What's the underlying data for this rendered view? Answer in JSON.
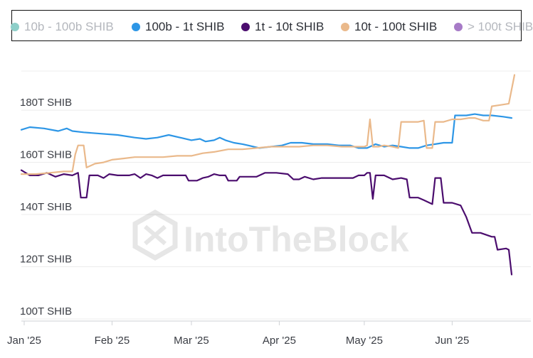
{
  "legend": [
    {
      "label": "10b - 100b SHIB",
      "color": "#8ecfc9",
      "active": false
    },
    {
      "label": "100b - 1t SHIB",
      "color": "#2d96e6",
      "active": true
    },
    {
      "label": "1t - 10t SHIB",
      "color": "#4b0d6e",
      "active": true
    },
    {
      "label": "10t - 100t SHIB",
      "color": "#eab98b",
      "active": true
    },
    {
      "label": "> 100t SHIB",
      "color": "#a77bc7",
      "active": false
    }
  ],
  "watermark": "IntoTheBlock",
  "chart_data": {
    "type": "line",
    "ylim": [
      100,
      195
    ],
    "y_ticks": [
      {
        "value": 100,
        "label": "100T SHIB"
      },
      {
        "value": 120,
        "label": "120T SHIB"
      },
      {
        "value": 140,
        "label": "140T SHIB"
      },
      {
        "value": 160,
        "label": "160T SHIB"
      },
      {
        "value": 180,
        "label": "180T SHIB"
      }
    ],
    "x_ticks": [
      {
        "x": 1,
        "label": "Jan '25"
      },
      {
        "x": 32,
        "label": "Feb '25"
      },
      {
        "x": 60,
        "label": "Mar '25"
      },
      {
        "x": 91,
        "label": "Apr '25"
      },
      {
        "x": 121,
        "label": "May '25"
      },
      {
        "x": 152,
        "label": "Jun '25"
      }
    ],
    "xlim": [
      0,
      174
    ],
    "series": [
      {
        "name": "100b - 1t SHIB",
        "color": "#2d96e6",
        "points": [
          [
            0,
            172.5
          ],
          [
            3,
            173.5
          ],
          [
            8,
            173
          ],
          [
            13,
            172
          ],
          [
            16,
            173
          ],
          [
            18,
            172
          ],
          [
            22,
            171.5
          ],
          [
            28,
            171
          ],
          [
            34,
            170.5
          ],
          [
            40,
            169.5
          ],
          [
            44,
            169
          ],
          [
            48,
            169.5
          ],
          [
            52,
            170.5
          ],
          [
            56,
            169.5
          ],
          [
            60,
            168.5
          ],
          [
            63,
            169
          ],
          [
            65,
            168
          ],
          [
            68,
            168.5
          ],
          [
            70,
            169.5
          ],
          [
            72,
            168.5
          ],
          [
            75,
            167.5
          ],
          [
            78,
            167
          ],
          [
            80,
            166.5
          ],
          [
            84,
            165.5
          ],
          [
            88,
            166
          ],
          [
            92,
            166.5
          ],
          [
            95,
            167.5
          ],
          [
            99,
            167.5
          ],
          [
            103,
            167
          ],
          [
            108,
            167
          ],
          [
            112,
            166.5
          ],
          [
            116,
            166.5
          ],
          [
            119,
            165.5
          ],
          [
            122,
            165.5
          ],
          [
            125,
            167
          ],
          [
            128,
            166
          ],
          [
            131,
            166.5
          ],
          [
            134,
            166
          ],
          [
            137,
            165.5
          ],
          [
            140,
            165.5
          ],
          [
            143,
            166.5
          ],
          [
            146,
            167
          ],
          [
            149,
            167.5
          ],
          [
            152,
            167.5
          ],
          [
            153,
            178
          ],
          [
            157,
            178
          ],
          [
            160,
            178.5
          ],
          [
            163,
            178
          ],
          [
            166,
            178
          ],
          [
            170,
            177.5
          ],
          [
            173,
            177
          ]
        ]
      },
      {
        "name": "1t - 10t SHIB",
        "color": "#4b0d6e",
        "points": [
          [
            0,
            157
          ],
          [
            3,
            155
          ],
          [
            6,
            155
          ],
          [
            9,
            156
          ],
          [
            12,
            154.5
          ],
          [
            15,
            155.5
          ],
          [
            18,
            155
          ],
          [
            20,
            156
          ],
          [
            21,
            146.5
          ],
          [
            23,
            146.5
          ],
          [
            24,
            155
          ],
          [
            27,
            155
          ],
          [
            29,
            154
          ],
          [
            31,
            155.5
          ],
          [
            34,
            155
          ],
          [
            38,
            155
          ],
          [
            40,
            155.5
          ],
          [
            42,
            154
          ],
          [
            44,
            155.5
          ],
          [
            46,
            155
          ],
          [
            48,
            154
          ],
          [
            50,
            155
          ],
          [
            53,
            155
          ],
          [
            56,
            155
          ],
          [
            58,
            155
          ],
          [
            59,
            153
          ],
          [
            62,
            153
          ],
          [
            64,
            154
          ],
          [
            66,
            154.5
          ],
          [
            68,
            155.5
          ],
          [
            70,
            155
          ],
          [
            72,
            155
          ],
          [
            73,
            153
          ],
          [
            76,
            153
          ],
          [
            77,
            154.5
          ],
          [
            80,
            154.5
          ],
          [
            83,
            154.5
          ],
          [
            86,
            156
          ],
          [
            90,
            156
          ],
          [
            94,
            155.5
          ],
          [
            96,
            153.5
          ],
          [
            98,
            153.5
          ],
          [
            100,
            154.5
          ],
          [
            103,
            153.5
          ],
          [
            106,
            154
          ],
          [
            110,
            154
          ],
          [
            114,
            154
          ],
          [
            117,
            154
          ],
          [
            119,
            155
          ],
          [
            121,
            155
          ],
          [
            122,
            156
          ],
          [
            123,
            156
          ],
          [
            124,
            146
          ],
          [
            125,
            155
          ],
          [
            128,
            155
          ],
          [
            131,
            153.5
          ],
          [
            134,
            154
          ],
          [
            136,
            153.5
          ],
          [
            137,
            146.5
          ],
          [
            140,
            146.5
          ],
          [
            142,
            145.5
          ],
          [
            145,
            144
          ],
          [
            146,
            154
          ],
          [
            148,
            154
          ],
          [
            149,
            144.5
          ],
          [
            152,
            144.5
          ],
          [
            155,
            143.5
          ],
          [
            157,
            139
          ],
          [
            159,
            133
          ],
          [
            162,
            133
          ],
          [
            166,
            131.5
          ],
          [
            167,
            131.5
          ],
          [
            168,
            126.5
          ],
          [
            171,
            127
          ],
          [
            172,
            126.5
          ],
          [
            173,
            117
          ]
        ]
      },
      {
        "name": "10t - 100t SHIB",
        "color": "#eab98b",
        "points": [
          [
            0,
            155.5
          ],
          [
            5,
            155.5
          ],
          [
            10,
            156
          ],
          [
            15,
            156.5
          ],
          [
            18,
            156.5
          ],
          [
            19,
            163
          ],
          [
            20,
            166.5
          ],
          [
            22,
            166.5
          ],
          [
            23,
            158
          ],
          [
            26,
            159.5
          ],
          [
            29,
            160
          ],
          [
            32,
            161
          ],
          [
            36,
            161.5
          ],
          [
            40,
            162
          ],
          [
            45,
            162
          ],
          [
            50,
            162
          ],
          [
            55,
            162.5
          ],
          [
            60,
            162.5
          ],
          [
            64,
            163.5
          ],
          [
            68,
            164
          ],
          [
            73,
            165
          ],
          [
            78,
            165
          ],
          [
            83,
            165.5
          ],
          [
            88,
            166
          ],
          [
            93,
            166
          ],
          [
            98,
            166
          ],
          [
            103,
            166.5
          ],
          [
            108,
            166.5
          ],
          [
            113,
            166
          ],
          [
            118,
            166
          ],
          [
            121,
            166
          ],
          [
            122,
            166.5
          ],
          [
            123,
            176.5
          ],
          [
            124,
            166
          ],
          [
            126,
            166
          ],
          [
            128,
            166.5
          ],
          [
            131,
            166
          ],
          [
            133,
            165.5
          ],
          [
            134,
            175.5
          ],
          [
            137,
            175.5
          ],
          [
            140,
            175.5
          ],
          [
            142,
            176
          ],
          [
            143,
            165.5
          ],
          [
            145,
            165.5
          ],
          [
            146,
            175.5
          ],
          [
            149,
            175.5
          ],
          [
            152,
            176.5
          ],
          [
            155,
            176.5
          ],
          [
            158,
            177
          ],
          [
            160,
            177
          ],
          [
            163,
            176
          ],
          [
            165,
            176
          ],
          [
            166,
            181.5
          ],
          [
            169,
            182
          ],
          [
            172,
            182.5
          ],
          [
            174,
            193.5
          ]
        ]
      }
    ]
  }
}
